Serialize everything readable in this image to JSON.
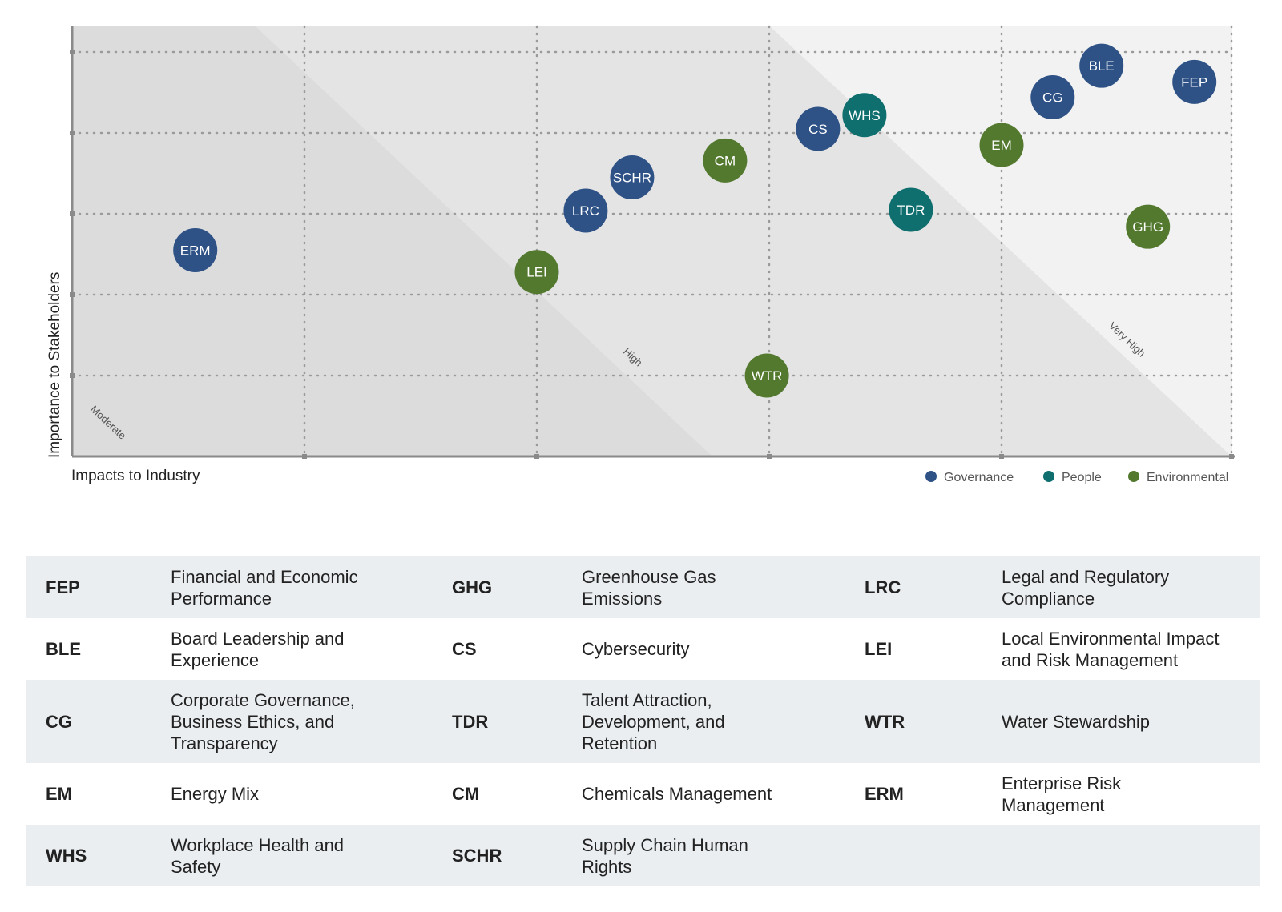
{
  "chart_data": {
    "type": "scatter",
    "xlabel": "Impacts to Industry",
    "ylabel": "Importance to Stakeholders",
    "xlim": [
      0,
      5
    ],
    "ylim": [
      0,
      5
    ],
    "grid": true,
    "zones": [
      "Moderate",
      "High",
      "Very High"
    ],
    "legend": {
      "placement": "bottom-right",
      "entries": [
        {
          "name": "Governance",
          "color": "#2e5286"
        },
        {
          "name": "People",
          "color": "#0f6e6e"
        },
        {
          "name": "Environmental",
          "color": "#53792f"
        }
      ]
    },
    "points": [
      {
        "label": "FEP",
        "category": "Governance",
        "x": 4.83,
        "y": 4.63
      },
      {
        "label": "BLE",
        "category": "Governance",
        "x": 4.43,
        "y": 4.83
      },
      {
        "label": "CG",
        "category": "Governance",
        "x": 4.22,
        "y": 4.44
      },
      {
        "label": "WHS",
        "category": "People",
        "x": 3.41,
        "y": 4.22
      },
      {
        "label": "CS",
        "category": "Governance",
        "x": 3.21,
        "y": 4.05
      },
      {
        "label": "EM",
        "category": "Environmental",
        "x": 4.0,
        "y": 3.85
      },
      {
        "label": "CM",
        "category": "Environmental",
        "x": 2.81,
        "y": 3.66
      },
      {
        "label": "SCHR",
        "category": "Governance",
        "x": 2.41,
        "y": 3.45
      },
      {
        "label": "TDR",
        "category": "People",
        "x": 3.61,
        "y": 3.05
      },
      {
        "label": "LRC",
        "category": "Governance",
        "x": 2.21,
        "y": 3.04
      },
      {
        "label": "GHG",
        "category": "Environmental",
        "x": 4.63,
        "y": 2.84
      },
      {
        "label": "ERM",
        "category": "Governance",
        "x": 0.53,
        "y": 2.55
      },
      {
        "label": "LEI",
        "category": "Environmental",
        "x": 2.0,
        "y": 2.28
      },
      {
        "label": "WTR",
        "category": "Environmental",
        "x": 2.99,
        "y": 1.0
      }
    ]
  },
  "table": {
    "rows": [
      [
        {
          "code": "FEP",
          "desc": "Financial and Economic\nPerformance"
        },
        {
          "code": "GHG",
          "desc": "Greenhouse Gas\nEmissions"
        },
        {
          "code": "LRC",
          "desc": "Legal and Regulatory\nCompliance"
        }
      ],
      [
        {
          "code": "BLE",
          "desc": "Board Leadership and\nExperience"
        },
        {
          "code": "CS",
          "desc": "Cybersecurity"
        },
        {
          "code": "LEI",
          "desc": "Local Environmental Impact\nand Risk Management"
        }
      ],
      [
        {
          "code": "CG",
          "desc": "Corporate Governance,\nBusiness Ethics, and\nTransparency"
        },
        {
          "code": "TDR",
          "desc": "Talent Attraction,\nDevelopment, and\nRetention"
        },
        {
          "code": "WTR",
          "desc": "Water Stewardship"
        }
      ],
      [
        {
          "code": "EM",
          "desc": "Energy Mix"
        },
        {
          "code": "CM",
          "desc": "Chemicals Management"
        },
        {
          "code": "ERM",
          "desc": "Enterprise Risk\nManagement"
        }
      ],
      [
        {
          "code": "WHS",
          "desc": "Workplace Health and\nSafety"
        },
        {
          "code": "SCHR",
          "desc": "Supply Chain Human\nRights"
        },
        {
          "code": "",
          "desc": ""
        }
      ]
    ]
  }
}
